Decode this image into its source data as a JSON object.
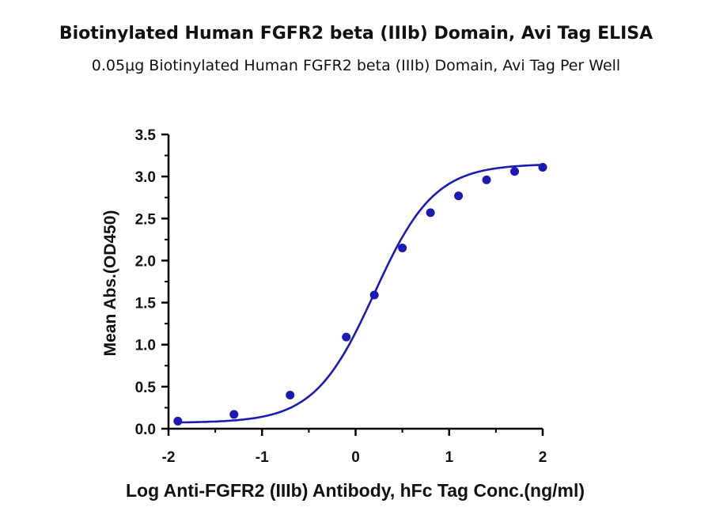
{
  "chart_data": {
    "type": "scatter",
    "title": "Biotinylated Human FGFR2 beta (IIIb) Domain, Avi Tag ELISA",
    "subtitle": "0.05μg Biotinylated Human FGFR2 beta (IIIb) Domain, Avi Tag Per Well",
    "xlabel": "Log Anti-FGFR2 (IIIb) Antibody, hFc Tag Conc.(ng/ml)",
    "ylabel": "Mean Abs.(OD450)",
    "xlim": [
      -2,
      2
    ],
    "ylim": [
      0,
      3.5
    ],
    "x_ticks": [
      "-2",
      "-1",
      "0",
      "1",
      "2"
    ],
    "y_ticks": [
      "0.0",
      "0.5",
      "1.0",
      "1.5",
      "2.0",
      "2.5",
      "3.0",
      "3.5"
    ],
    "series": [
      {
        "x": [
          -1.9,
          -1.3,
          -0.7,
          -0.1,
          0.2,
          0.5,
          0.8,
          1.1,
          1.4,
          1.7,
          2.0
        ],
        "values": [
          0.09,
          0.17,
          0.4,
          1.09,
          1.59,
          2.15,
          2.57,
          2.77,
          2.96,
          3.06,
          3.11
        ]
      }
    ],
    "fit_curve": {
      "model": "4PL",
      "bottom": 0.07,
      "top": 3.15,
      "log_ec50": 0.2,
      "hill_slope": 1.35
    },
    "colors": {
      "series": "#1a1ab5",
      "axis": "#000000"
    },
    "grid": false,
    "legend": "none"
  }
}
